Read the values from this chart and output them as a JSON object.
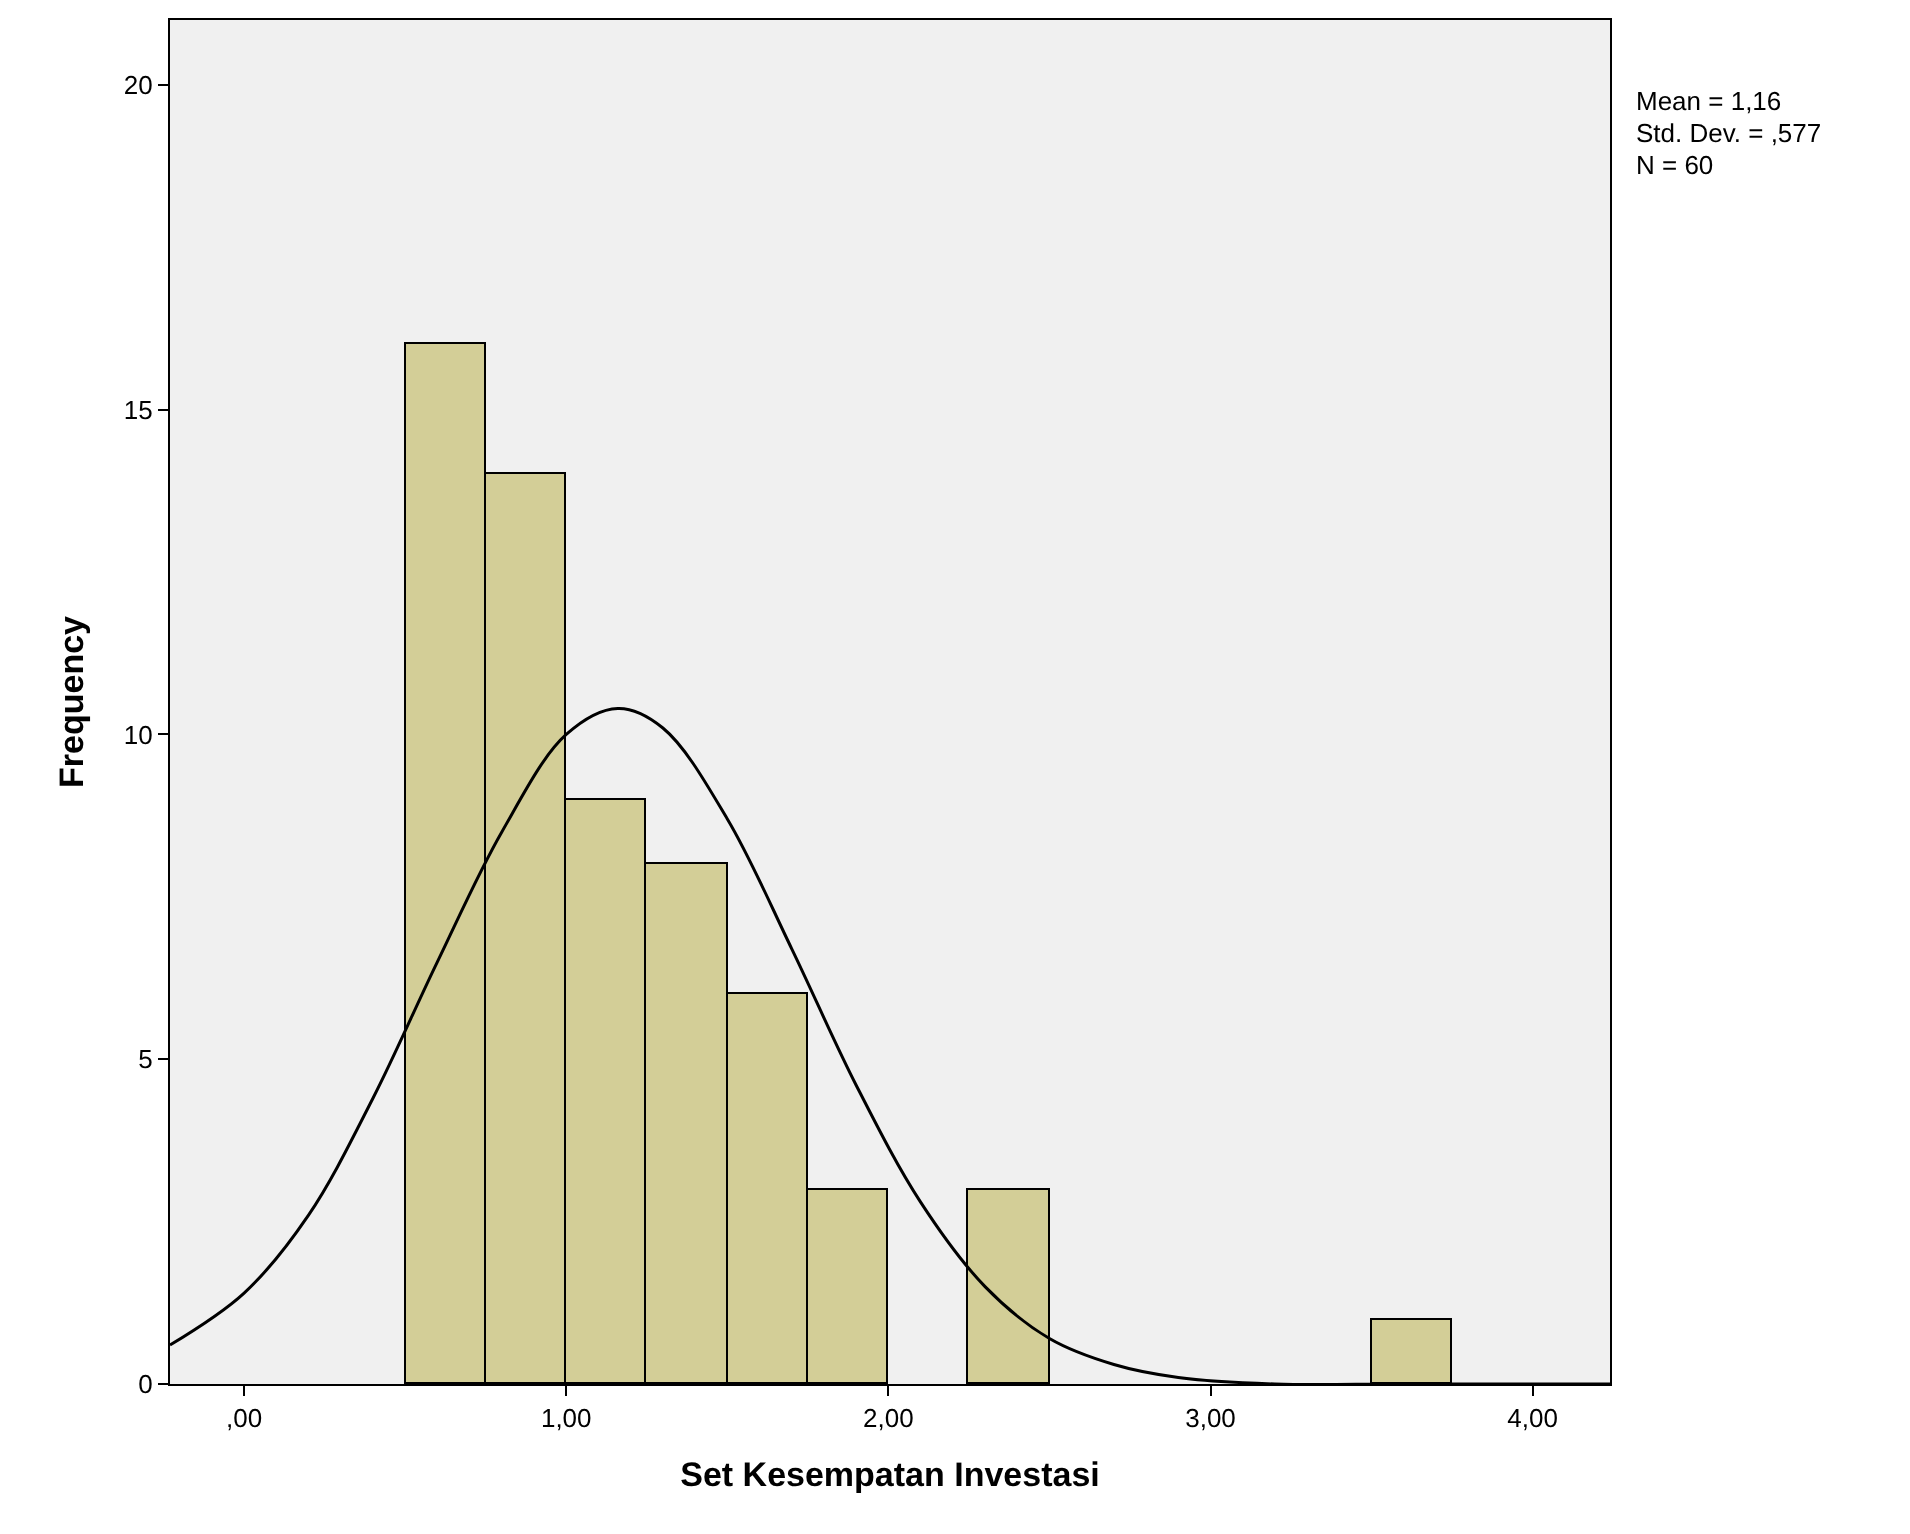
{
  "chart_data": {
    "type": "histogram",
    "xlabel": "Set Kesempatan Investasi",
    "ylabel": "Frequency",
    "bins": [
      0.5,
      0.75,
      1.0,
      1.25,
      1.5,
      1.75,
      2.0,
      2.25,
      2.5,
      2.75,
      3.0,
      3.25,
      3.5,
      3.75
    ],
    "values": [
      16,
      14,
      9,
      8,
      6,
      3,
      0,
      3,
      0,
      0,
      0,
      0,
      1
    ],
    "color": "#d3ce97",
    "series": [
      {
        "type": "line",
        "color": "#000000",
        "x": [
          -0.23,
          0,
          0.2,
          0.4,
          0.6,
          0.8,
          1.0,
          1.16,
          1.3,
          1.5,
          1.7,
          1.9,
          2.1,
          2.3,
          2.5,
          2.7,
          2.9,
          3.2,
          3.6,
          4.24
        ],
        "values": [
          0.6,
          1.4,
          2.6,
          4.4,
          6.5,
          8.5,
          10.0,
          10.4,
          10.1,
          8.7,
          6.7,
          4.6,
          2.8,
          1.5,
          0.7,
          0.3,
          0.1,
          0.0,
          0.0,
          0.0
        ]
      }
    ],
    "xlim": [
      -0.23,
      4.24
    ],
    "ylim": [
      0,
      21
    ],
    "xticks": [
      {
        "value": 0,
        "label": ",00"
      },
      {
        "value": 1,
        "label": "1,00"
      },
      {
        "value": 2,
        "label": "2,00"
      },
      {
        "value": 3,
        "label": "3,00"
      },
      {
        "value": 4,
        "label": "4,00"
      }
    ],
    "yticks": [
      0,
      5,
      10,
      15,
      20
    ],
    "grid": false,
    "annotations": [
      "Mean = 1,16",
      "Std. Dev. = ,577",
      "N = 60"
    ]
  }
}
